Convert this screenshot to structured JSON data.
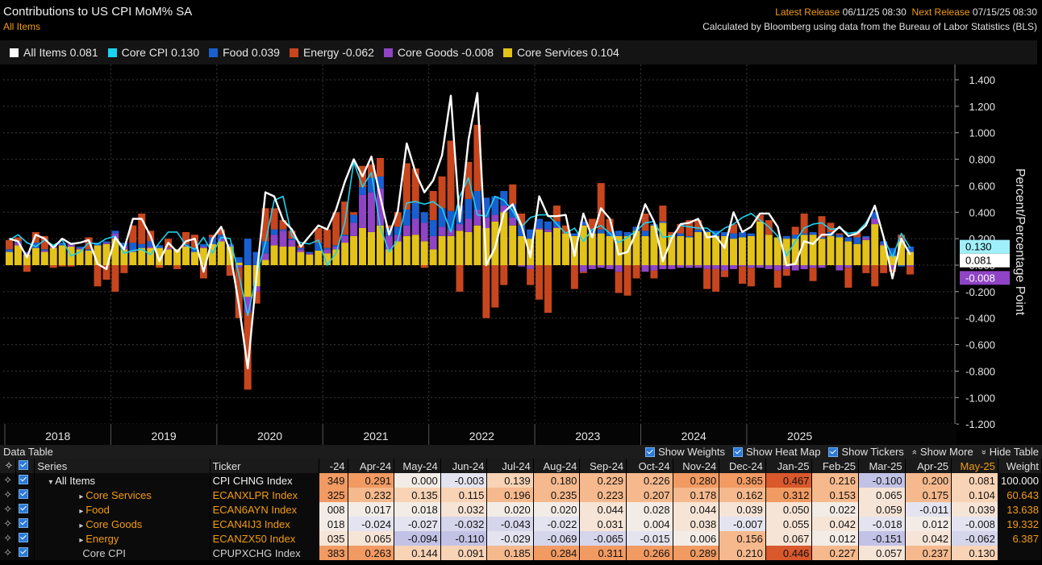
{
  "header": {
    "title": "Contributions to US CPI MoM% SA",
    "subtitle": "All Items",
    "latest_label": "Latest Release",
    "latest_value": "06/11/25 08:30",
    "next_label": "Next Release",
    "next_value": "07/15/25 08:30",
    "source": "Calculated by Bloomberg using data from the Bureau of Labor Statistics (BLS)"
  },
  "legend": [
    {
      "label": "All Items 0.081",
      "color": "#ffffff"
    },
    {
      "label": "Core CPI 0.130",
      "color": "#19d3f0"
    },
    {
      "label": "Food 0.039",
      "color": "#1a5fd0"
    },
    {
      "label": "Energy -0.062",
      "color": "#c8461e"
    },
    {
      "label": "Core Goods -0.008",
      "color": "#8e44c4"
    },
    {
      "label": "Core Services 0.104",
      "color": "#e3c21a"
    }
  ],
  "chart_data": {
    "type": "bar",
    "stacked": true,
    "ylabel": "Percent/Percentage Point",
    "ylim": [
      -1.2,
      1.45
    ],
    "y_ticks": [
      "1.400",
      "1.200",
      "1.000",
      "0.800",
      "0.600",
      "0.400",
      "0.200",
      "0.000",
      "-0.200",
      "-0.400",
      "-0.600",
      "-0.800",
      "-1.000",
      "-1.200"
    ],
    "x_year_labels": [
      "2018",
      "2019",
      "2020",
      "2021",
      "2022",
      "2023",
      "2024",
      "2025"
    ],
    "x_start": "2018-01",
    "end_labels": [
      {
        "text": "0.130",
        "value": 0.13,
        "color": "#19d3f0"
      },
      {
        "text": "0.081",
        "value": 0.081,
        "color": "#ffffff"
      },
      {
        "text": "-0.008",
        "value": -0.008,
        "color": "#8e44c4"
      }
    ],
    "series": [
      {
        "name": "Core Services",
        "color": "#e3c21a",
        "values": [
          0.1,
          0.15,
          0.08,
          0.13,
          0.1,
          0.13,
          0.15,
          0.14,
          0.12,
          0.11,
          0.15,
          0.16,
          0.2,
          0.12,
          0.1,
          0.13,
          0.13,
          0.13,
          0.12,
          0.12,
          0.14,
          0.1,
          0.13,
          0.16,
          0.18,
          0.14,
          0.02,
          -0.24,
          -0.16,
          0.04,
          0.15,
          0.14,
          0.14,
          0.1,
          0.08,
          0.11,
          0.09,
          0.12,
          0.17,
          0.22,
          0.28,
          0.25,
          0.3,
          0.12,
          0.18,
          0.22,
          0.23,
          0.18,
          0.12,
          0.22,
          0.22,
          0.26,
          0.25,
          0.3,
          0.28,
          0.33,
          0.4,
          0.3,
          0.22,
          0.2,
          0.27,
          0.25,
          0.28,
          0.24,
          0.22,
          0.3,
          0.24,
          0.24,
          0.22,
          0.22,
          0.22,
          0.26,
          0.22,
          0.3,
          0.32,
          0.23,
          0.22,
          0.21,
          0.25,
          0.25,
          0.22,
          0.22,
          0.2,
          0.21,
          0.22,
          0.33,
          0.23,
          0.21,
          0.2,
          0.2,
          0.23,
          0.23,
          0.2,
          0.22,
          0.21,
          0.18,
          0.16,
          0.19,
          0.31,
          0.15,
          0.07,
          0.18,
          0.1
        ]
      },
      {
        "name": "Core Goods",
        "color": "#8e44c4",
        "values": [
          0.0,
          0.02,
          0.01,
          0.0,
          0.01,
          0.01,
          0.0,
          0.02,
          0.01,
          0.0,
          0.0,
          0.01,
          0.04,
          0.02,
          0.01,
          0.0,
          0.01,
          0.0,
          0.01,
          0.0,
          0.01,
          0.0,
          0.01,
          0.0,
          0.02,
          0.01,
          -0.02,
          -0.12,
          -0.04,
          0.05,
          0.08,
          0.12,
          0.05,
          0.02,
          0.01,
          0.0,
          0.03,
          0.02,
          0.05,
          0.1,
          0.25,
          0.3,
          0.28,
          0.1,
          0.05,
          0.08,
          0.12,
          0.14,
          0.1,
          0.07,
          0.05,
          0.05,
          0.1,
          0.12,
          0.08,
          0.05,
          0.05,
          0.06,
          -0.01,
          -0.03,
          0.01,
          0.02,
          0.01,
          0.0,
          0.0,
          -0.05,
          -0.03,
          -0.02,
          -0.03,
          -0.05,
          0.0,
          0.0,
          -0.05,
          -0.04,
          -0.03,
          -0.03,
          -0.02,
          -0.02,
          -0.02,
          -0.03,
          -0.03,
          -0.04,
          -0.03,
          -0.01,
          -0.02,
          -0.02,
          -0.03,
          -0.04,
          -0.03,
          -0.04,
          -0.03,
          -0.02,
          -0.02,
          0.0,
          -0.04,
          -0.02,
          0.0,
          0.02,
          0.04,
          0.01,
          -0.03,
          0.01,
          -0.01
        ]
      },
      {
        "name": "Food",
        "color": "#1a5fd0",
        "values": [
          0.02,
          0.01,
          0.01,
          0.04,
          0.01,
          0.01,
          0.02,
          0.01,
          0.01,
          0.01,
          0.02,
          0.01,
          0.02,
          0.03,
          0.06,
          0.03,
          0.04,
          0.02,
          0.0,
          0.0,
          0.01,
          0.03,
          0.02,
          0.05,
          0.03,
          0.01,
          0.04,
          0.2,
          0.1,
          0.09,
          0.04,
          0.01,
          0.01,
          0.01,
          0.01,
          0.06,
          0.01,
          0.01,
          0.01,
          0.06,
          0.06,
          0.11,
          0.09,
          0.06,
          0.06,
          0.12,
          0.12,
          0.08,
          0.12,
          0.14,
          0.14,
          0.14,
          0.15,
          0.14,
          0.15,
          0.14,
          0.11,
          0.1,
          0.08,
          0.07,
          0.07,
          0.06,
          0.04,
          0.0,
          0.02,
          0.03,
          0.03,
          0.03,
          0.03,
          0.04,
          0.03,
          0.03,
          0.04,
          0.01,
          0.01,
          0.0,
          0.02,
          0.01,
          0.02,
          0.01,
          0.04,
          0.03,
          0.04,
          0.04,
          0.02,
          0.0,
          0.0,
          0.0,
          0.02,
          0.03,
          0.01,
          0.02,
          0.01,
          0.03,
          0.02,
          0.03,
          0.05,
          0.01,
          0.05,
          0.02,
          0.06,
          -0.01,
          0.04
        ]
      },
      {
        "name": "Energy",
        "color": "#c8461e",
        "values": [
          0.07,
          0.03,
          -0.05,
          0.08,
          0.1,
          -0.02,
          -0.01,
          -0.01,
          0.0,
          0.09,
          -0.16,
          -0.11,
          -0.2,
          -0.06,
          0.13,
          0.23,
          0.08,
          -0.02,
          0.07,
          -0.03,
          0.09,
          0.1,
          -0.1,
          0.02,
          0.04,
          -0.08,
          -0.38,
          -0.58,
          -0.09,
          0.25,
          0.16,
          0.07,
          0.06,
          0.02,
          0.0,
          0.11,
          0.14,
          0.25,
          0.25,
          0.02,
          0.16,
          0.1,
          0.14,
          0.02,
          0.11,
          0.35,
          0.26,
          -0.02,
          0.22,
          0.24,
          0.53,
          -0.2,
          0.28,
          0.5,
          -0.4,
          -0.32,
          -0.15,
          0.15,
          0.09,
          -0.12,
          -0.26,
          -0.36,
          0.12,
          0.06,
          -0.18,
          -0.01,
          0.08,
          0.35,
          0.1,
          -0.16,
          -0.23,
          -0.1,
          0.13,
          -0.06,
          0.12,
          0.02,
          0.07,
          0.12,
          0.07,
          -0.15,
          -0.17,
          -0.05,
          0.07,
          -0.13,
          -0.14,
          0.05,
          0.11,
          -0.13,
          -0.05,
          0.06,
          0.15,
          -0.1,
          0.16,
          0.07,
          0.01,
          -0.15,
          0.04,
          -0.06,
          -0.16,
          -0.06,
          -0.02,
          0.04,
          -0.06
        ]
      }
    ],
    "all_items": [
      0.2,
      0.18,
      0.06,
      0.23,
      0.2,
      0.13,
      0.2,
      0.16,
      0.17,
      0.19,
      0.01,
      -0.03,
      0.21,
      0.12,
      0.35,
      0.35,
      0.22,
      0.03,
      0.17,
      0.1,
      0.18,
      0.2,
      -0.05,
      0.2,
      0.29,
      0.1,
      -0.3,
      -0.78,
      -0.08,
      0.55,
      0.52,
      0.34,
      0.27,
      0.14,
      0.22,
      0.3,
      0.27,
      0.42,
      0.63,
      0.8,
      0.67,
      0.82,
      0.52,
      0.23,
      0.41,
      0.92,
      0.7,
      0.55,
      0.64,
      0.83,
      1.28,
      0.33,
      0.95,
      1.3,
      0.0,
      0.13,
      0.4,
      0.46,
      0.3,
      0.06,
      0.52,
      0.37,
      0.37,
      0.38,
      0.07,
      0.39,
      0.21,
      0.43,
      0.35,
      0.08,
      0.1,
      0.25,
      0.46,
      0.33,
      0.03,
      0.2,
      0.31,
      0.32,
      0.35,
      0.21,
      0.22,
      0.13,
      0.4,
      0.25,
      0.29,
      0.39,
      0.39,
      0.29,
      0.0,
      0.01,
      0.18,
      0.16,
      0.23,
      0.23,
      0.29,
      0.22,
      0.24,
      0.3,
      0.45,
      0.21,
      -0.1,
      0.2,
      0.08
    ],
    "core_cpi": [
      0.19,
      0.23,
      0.17,
      0.14,
      0.19,
      0.15,
      0.19,
      0.07,
      0.1,
      0.17,
      0.16,
      0.2,
      0.22,
      0.09,
      0.11,
      0.12,
      0.08,
      0.17,
      0.25,
      0.25,
      0.15,
      0.12,
      0.21,
      0.09,
      0.21,
      0.2,
      -0.07,
      -0.38,
      -0.08,
      0.17,
      0.49,
      0.52,
      0.22,
      0.17,
      0.16,
      0.19,
      0.0,
      0.09,
      0.32,
      0.78,
      0.59,
      0.7,
      0.29,
      0.1,
      0.19,
      0.47,
      0.48,
      0.46,
      0.48,
      0.43,
      0.25,
      0.52,
      0.66,
      0.38,
      0.37,
      0.52,
      0.49,
      0.41,
      0.29,
      0.36,
      0.38,
      0.38,
      0.31,
      0.24,
      0.28,
      0.18,
      0.27,
      0.3,
      0.24,
      0.17,
      0.21,
      0.26,
      0.32,
      0.33,
      0.21,
      0.22,
      0.3,
      0.29,
      0.28,
      0.28,
      0.23,
      0.28,
      0.31,
      0.36,
      0.39,
      0.34,
      0.29,
      0.22,
      0.07,
      0.18,
      0.28,
      0.31,
      0.32,
      0.27,
      0.28,
      0.24,
      0.25,
      0.32,
      0.44,
      0.21,
      0.06,
      0.24,
      0.13
    ]
  },
  "data_table": {
    "title": "Data Table",
    "options": [
      "Show Weights",
      "Show Heat Map",
      "Show Tickers",
      "Show More",
      "Hide Table"
    ],
    "col_series": "Series",
    "col_ticker": "Ticker",
    "col_weight": "Weight",
    "months": [
      "-24",
      "Apr-24",
      "May-24",
      "Jun-24",
      "Jul-24",
      "Aug-24",
      "Sep-24",
      "Oct-24",
      "Nov-24",
      "Dec-24",
      "Jan-25",
      "Feb-25",
      "Mar-25",
      "Apr-25",
      "May-25"
    ],
    "rows": [
      {
        "series": "All Items",
        "ticker": "CPI CHNG Index",
        "values": [
          "349",
          "0.291",
          "0.000",
          "-0.003",
          "0.139",
          "0.180",
          "0.229",
          "0.226",
          "0.280",
          "0.365",
          "0.467",
          "0.216",
          "-0.100",
          "0.200",
          "0.081"
        ],
        "weight": "100.000"
      },
      {
        "series": "Core Services",
        "ticker": "ECANXLPR Index",
        "values": [
          "325",
          "0.232",
          "0.135",
          "0.115",
          "0.196",
          "0.235",
          "0.223",
          "0.207",
          "0.178",
          "0.162",
          "0.312",
          "0.153",
          "0.065",
          "0.175",
          "0.104"
        ],
        "weight": "60.643"
      },
      {
        "series": "Food",
        "ticker": "ECAN6AYN Index",
        "values": [
          "008",
          "0.017",
          "0.018",
          "0.032",
          "0.020",
          "0.020",
          "0.044",
          "0.028",
          "0.044",
          "0.039",
          "0.050",
          "0.022",
          "0.059",
          "-0.011",
          "0.039"
        ],
        "weight": "13.638"
      },
      {
        "series": "Core Goods",
        "ticker": "ECAN4IJ3 Index",
        "values": [
          "018",
          "-0.024",
          "-0.027",
          "-0.032",
          "-0.043",
          "-0.022",
          "0.031",
          "0.004",
          "0.038",
          "-0.007",
          "0.055",
          "0.042",
          "-0.018",
          "0.012",
          "-0.008"
        ],
        "weight": "19.332"
      },
      {
        "series": "Energy",
        "ticker": "ECANZX50 Index",
        "values": [
          "035",
          "0.065",
          "-0.094",
          "-0.110",
          "-0.029",
          "-0.069",
          "-0.065",
          "-0.015",
          "0.006",
          "0.156",
          "0.067",
          "0.012",
          "-0.151",
          "0.042",
          "-0.062"
        ],
        "weight": "6.387"
      },
      {
        "series": "Core CPI",
        "ticker": "CPUPXCHG Index",
        "values": [
          "383",
          "0.263",
          "0.144",
          "0.091",
          "0.185",
          "0.284",
          "0.311",
          "0.266",
          "0.289",
          "0.210",
          "0.446",
          "0.227",
          "0.057",
          "0.237",
          "0.130"
        ],
        "weight": ""
      }
    ]
  }
}
